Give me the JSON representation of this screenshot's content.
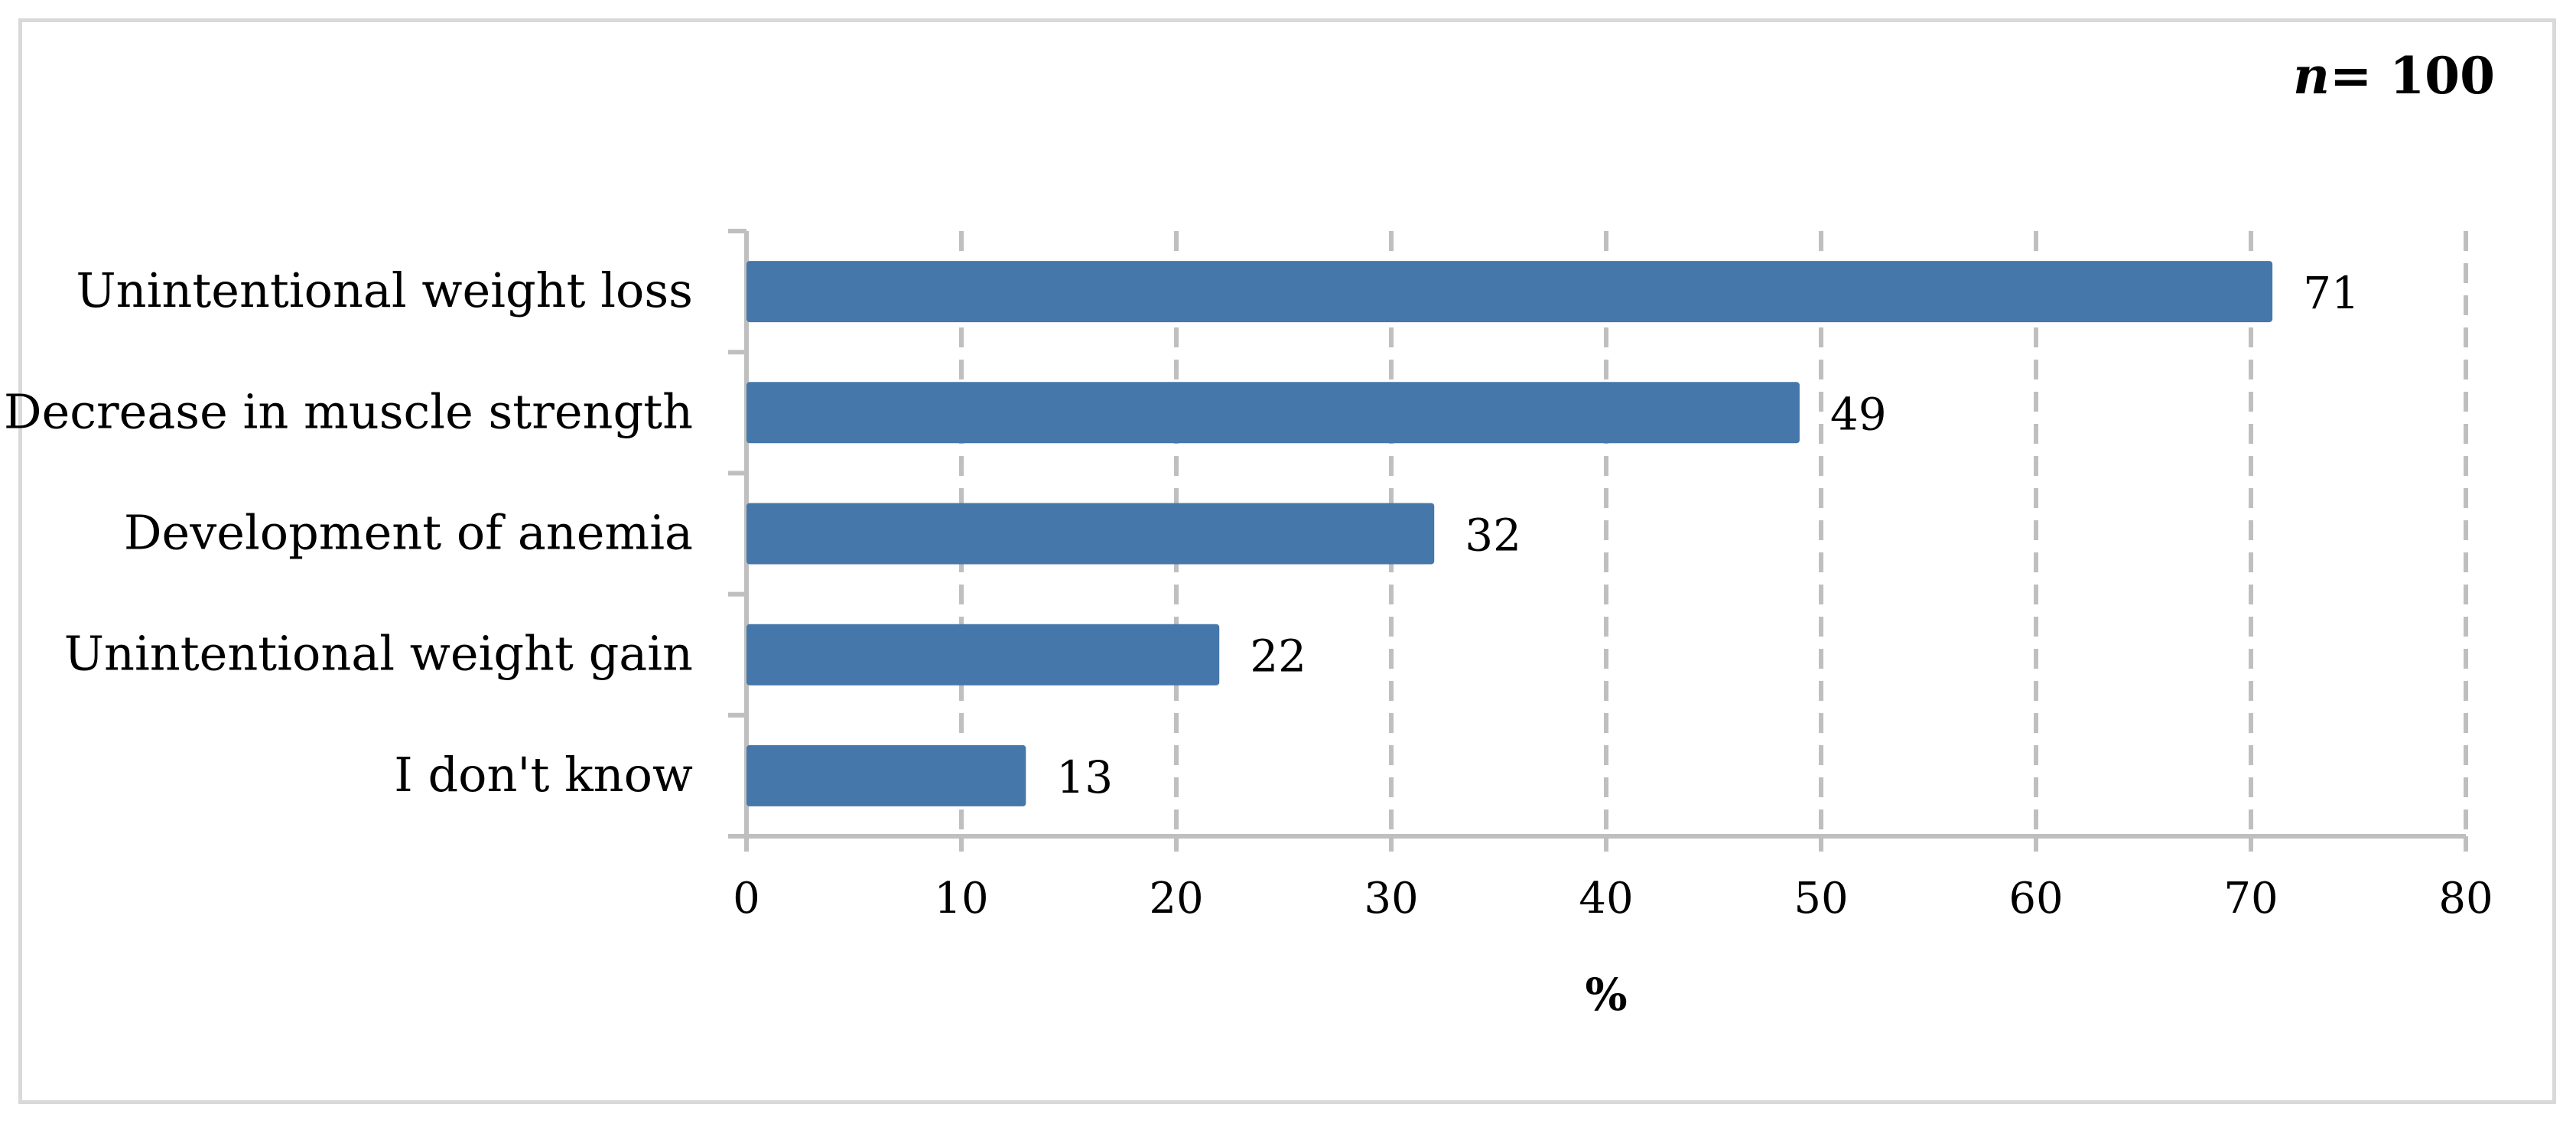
{
  "sample_size": {
    "n_symbol": "n",
    "n_text": "= 100"
  },
  "chart_data": {
    "type": "bar",
    "orientation": "horizontal",
    "categories": [
      "Unintentional weight loss",
      "Decrease in muscle strength",
      "Development of anemia",
      "Unintentional weight gain",
      "I don't know"
    ],
    "values": [
      71,
      49,
      32,
      22,
      13
    ],
    "data_labels": [
      "71",
      "49",
      "32",
      "22",
      "13"
    ],
    "xlabel": "%",
    "xlim": [
      0,
      80
    ],
    "xticks": [
      0,
      10,
      20,
      30,
      40,
      50,
      60,
      70,
      80
    ],
    "grid": "vertical dashed",
    "bar_color": "#4577aa",
    "grid_color": "#bfbfbf",
    "axis_color": "#bfbfbf"
  }
}
